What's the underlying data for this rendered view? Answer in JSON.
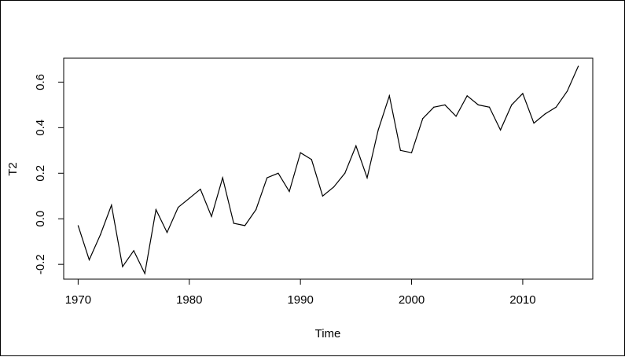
{
  "chart_data": {
    "type": "line",
    "title": "",
    "xlabel": "Time",
    "ylabel": "T2",
    "xlim": [
      1968.7,
      2016.3
    ],
    "ylim": [
      -0.265,
      0.705
    ],
    "x_ticks": [
      1970,
      1980,
      1990,
      2000,
      2010
    ],
    "x_tick_labels": [
      "1970",
      "1980",
      "1990",
      "2000",
      "2010"
    ],
    "y_ticks": [
      -0.2,
      0.0,
      0.2,
      0.4,
      0.6
    ],
    "y_tick_labels": [
      "-0.2",
      "0.0",
      "0.2",
      "0.4",
      "0.6"
    ],
    "grid": false,
    "legend": "none",
    "line_color": "#000000",
    "series": [
      {
        "x": [
          1970,
          1971,
          1972,
          1973,
          1974,
          1975,
          1976,
          1977,
          1978,
          1979,
          1980,
          1981,
          1982,
          1983,
          1984,
          1985,
          1986,
          1987,
          1988,
          1989,
          1990,
          1991,
          1992,
          1993,
          1994,
          1995,
          1996,
          1997,
          1998,
          1999,
          2000,
          2001,
          2002,
          2003,
          2004,
          2005,
          2006,
          2007,
          2008,
          2009,
          2010,
          2011,
          2012,
          2013,
          2014,
          2015
        ],
        "values": [
          -0.03,
          -0.18,
          -0.07,
          0.06,
          -0.21,
          -0.14,
          -0.24,
          0.04,
          -0.06,
          0.05,
          0.09,
          0.13,
          0.01,
          0.18,
          -0.02,
          -0.03,
          0.04,
          0.18,
          0.2,
          0.12,
          0.29,
          0.26,
          0.1,
          0.14,
          0.2,
          0.32,
          0.18,
          0.39,
          0.54,
          0.3,
          0.29,
          0.44,
          0.49,
          0.5,
          0.45,
          0.54,
          0.5,
          0.49,
          0.39,
          0.5,
          0.55,
          0.42,
          0.46,
          0.49,
          0.56,
          0.67
        ]
      }
    ]
  }
}
